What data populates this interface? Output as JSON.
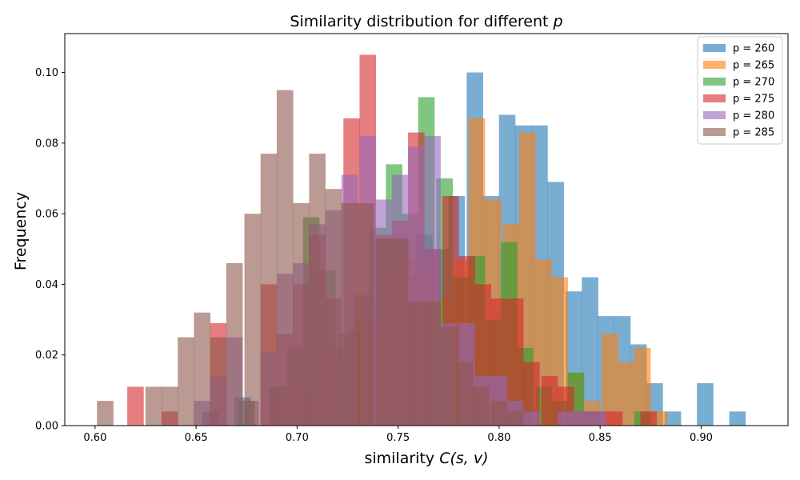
{
  "chart_data": {
    "type": "bar",
    "title_prefix": "Similarity distribution for different ",
    "title_var": "p",
    "xlabel_prefix": "similarity ",
    "xlabel_math": "C(s, v)",
    "ylabel": "Frequency",
    "xlim": [
      0.585,
      0.943
    ],
    "ylim": [
      0,
      0.111
    ],
    "xticks": [
      "0.60",
      "0.65",
      "0.70",
      "0.75",
      "0.80",
      "0.85",
      "0.90"
    ],
    "yticks": [
      "0.00",
      "0.02",
      "0.04",
      "0.06",
      "0.08",
      "0.10"
    ],
    "bin_width": 0.00816,
    "legend_position": "upper right",
    "grid": false,
    "series": [
      {
        "name": "p = 260",
        "color": "#1f77b4",
        "bins": [
          [
            0.657,
            0.004
          ],
          [
            0.673,
            0.008
          ],
          [
            0.69,
            0.011
          ],
          [
            0.706,
            0.011
          ],
          [
            0.714,
            0.015
          ],
          [
            0.722,
            0.019
          ],
          [
            0.73,
            0.027
          ],
          [
            0.739,
            0.035
          ],
          [
            0.747,
            0.031
          ],
          [
            0.755,
            0.042
          ],
          [
            0.763,
            0.054
          ],
          [
            0.771,
            0.05
          ],
          [
            0.779,
            0.065
          ],
          [
            0.788,
            0.1
          ],
          [
            0.796,
            0.065
          ],
          [
            0.804,
            0.088
          ],
          [
            0.812,
            0.085
          ],
          [
            0.82,
            0.085
          ],
          [
            0.828,
            0.069
          ],
          [
            0.837,
            0.038
          ],
          [
            0.845,
            0.042
          ],
          [
            0.853,
            0.031
          ],
          [
            0.861,
            0.031
          ],
          [
            0.869,
            0.023
          ],
          [
            0.877,
            0.012
          ],
          [
            0.886,
            0.004
          ],
          [
            0.902,
            0.012
          ],
          [
            0.918,
            0.004
          ]
        ]
      },
      {
        "name": "p = 265",
        "color": "#ff7f0e",
        "bins": [
          [
            0.675,
            0.007
          ],
          [
            0.691,
            0.007
          ],
          [
            0.7,
            0.011
          ],
          [
            0.707,
            0.011
          ],
          [
            0.716,
            0.022
          ],
          [
            0.724,
            0.022
          ],
          [
            0.732,
            0.029
          ],
          [
            0.74,
            0.029
          ],
          [
            0.748,
            0.044
          ],
          [
            0.757,
            0.047
          ],
          [
            0.765,
            0.047
          ],
          [
            0.773,
            0.036
          ],
          [
            0.781,
            0.047
          ],
          [
            0.789,
            0.087
          ],
          [
            0.797,
            0.064
          ],
          [
            0.806,
            0.057
          ],
          [
            0.814,
            0.083
          ],
          [
            0.822,
            0.047
          ],
          [
            0.83,
            0.042
          ],
          [
            0.838,
            0.015
          ],
          [
            0.846,
            0.007
          ],
          [
            0.855,
            0.026
          ],
          [
            0.863,
            0.018
          ],
          [
            0.871,
            0.022
          ],
          [
            0.879,
            0.004
          ]
        ]
      },
      {
        "name": "p = 270",
        "color": "#2ca02c",
        "bins": [
          [
            0.675,
            0.007
          ],
          [
            0.691,
            0.011
          ],
          [
            0.699,
            0.022
          ],
          [
            0.707,
            0.059
          ],
          [
            0.715,
            0.044
          ],
          [
            0.724,
            0.026
          ],
          [
            0.732,
            0.037
          ],
          [
            0.74,
            0.056
          ],
          [
            0.748,
            0.074
          ],
          [
            0.756,
            0.06
          ],
          [
            0.764,
            0.093
          ],
          [
            0.773,
            0.07
          ],
          [
            0.781,
            0.042
          ],
          [
            0.789,
            0.048
          ],
          [
            0.797,
            0.03
          ],
          [
            0.805,
            0.052
          ],
          [
            0.813,
            0.022
          ],
          [
            0.822,
            0.011
          ],
          [
            0.83,
            0.007
          ],
          [
            0.838,
            0.015
          ],
          [
            0.846,
            0.004
          ],
          [
            0.871,
            0.004
          ]
        ]
      },
      {
        "name": "p = 275",
        "color": "#d62728",
        "bins": [
          [
            0.62,
            0.011
          ],
          [
            0.637,
            0.004
          ],
          [
            0.661,
            0.029
          ],
          [
            0.686,
            0.04
          ],
          [
            0.694,
            0.026
          ],
          [
            0.702,
            0.04
          ],
          [
            0.71,
            0.054
          ],
          [
            0.718,
            0.036
          ],
          [
            0.727,
            0.087
          ],
          [
            0.735,
            0.105
          ],
          [
            0.743,
            0.054
          ],
          [
            0.751,
            0.058
          ],
          [
            0.759,
            0.083
          ],
          [
            0.767,
            0.05
          ],
          [
            0.776,
            0.065
          ],
          [
            0.784,
            0.048
          ],
          [
            0.792,
            0.04
          ],
          [
            0.8,
            0.036
          ],
          [
            0.808,
            0.036
          ],
          [
            0.816,
            0.018
          ],
          [
            0.825,
            0.014
          ],
          [
            0.833,
            0.011
          ],
          [
            0.841,
            0.004
          ],
          [
            0.849,
            0.004
          ],
          [
            0.857,
            0.004
          ],
          [
            0.874,
            0.004
          ]
        ]
      },
      {
        "name": "p = 280",
        "color": "#9467bd",
        "bins": [
          [
            0.653,
            0.007
          ],
          [
            0.661,
            0.014
          ],
          [
            0.669,
            0.025
          ],
          [
            0.677,
            0.007
          ],
          [
            0.686,
            0.021
          ],
          [
            0.694,
            0.043
          ],
          [
            0.702,
            0.046
          ],
          [
            0.71,
            0.057
          ],
          [
            0.718,
            0.061
          ],
          [
            0.726,
            0.071
          ],
          [
            0.735,
            0.082
          ],
          [
            0.743,
            0.064
          ],
          [
            0.751,
            0.071
          ],
          [
            0.759,
            0.079
          ],
          [
            0.767,
            0.082
          ],
          [
            0.775,
            0.029
          ],
          [
            0.784,
            0.029
          ],
          [
            0.792,
            0.014
          ],
          [
            0.8,
            0.014
          ],
          [
            0.808,
            0.007
          ],
          [
            0.816,
            0.004
          ],
          [
            0.833,
            0.004
          ],
          [
            0.841,
            0.004
          ],
          [
            0.849,
            0.004
          ]
        ]
      },
      {
        "name": "p = 285",
        "color": "#8c564b",
        "bins": [
          [
            0.605,
            0.007
          ],
          [
            0.629,
            0.011
          ],
          [
            0.637,
            0.011
          ],
          [
            0.645,
            0.025
          ],
          [
            0.653,
            0.032
          ],
          [
            0.661,
            0.025
          ],
          [
            0.669,
            0.046
          ],
          [
            0.678,
            0.06
          ],
          [
            0.686,
            0.077
          ],
          [
            0.694,
            0.095
          ],
          [
            0.702,
            0.063
          ],
          [
            0.71,
            0.077
          ],
          [
            0.718,
            0.067
          ],
          [
            0.726,
            0.063
          ],
          [
            0.734,
            0.063
          ],
          [
            0.743,
            0.053
          ],
          [
            0.751,
            0.053
          ],
          [
            0.759,
            0.035
          ],
          [
            0.767,
            0.035
          ],
          [
            0.775,
            0.028
          ],
          [
            0.783,
            0.018
          ],
          [
            0.791,
            0.011
          ],
          [
            0.8,
            0.007
          ],
          [
            0.808,
            0.004
          ]
        ]
      }
    ]
  }
}
